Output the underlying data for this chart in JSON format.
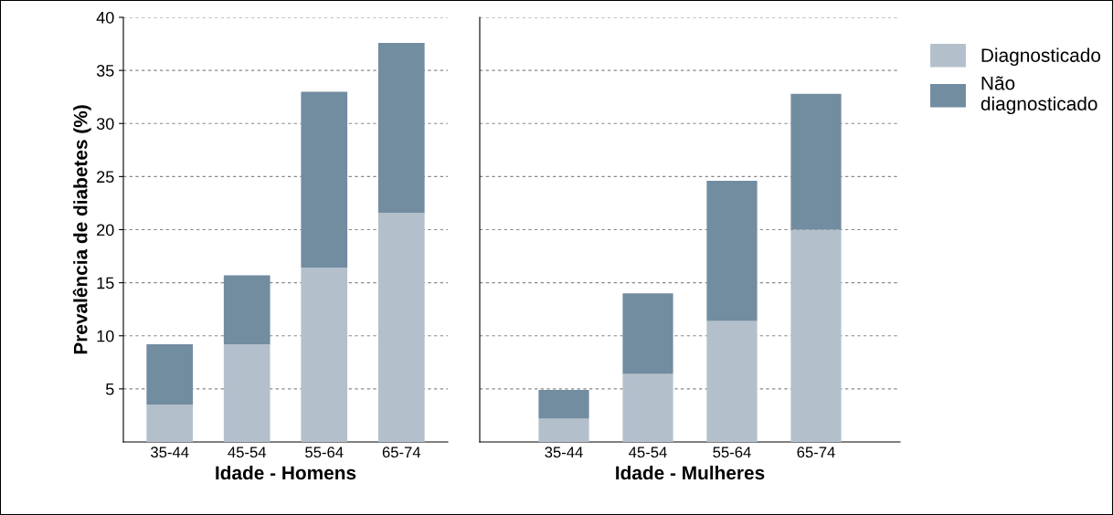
{
  "chart_data": [
    {
      "type": "bar",
      "stacked": true,
      "xlabel": "Idade - Homens",
      "ylabel": "Prevalência de diabetes (%)",
      "categories": [
        "35-44",
        "45-54",
        "55-64",
        "65-74"
      ],
      "series": [
        {
          "name": "Diagnosticado",
          "color": "#b3c0cc",
          "values": [
            3.5,
            9.2,
            16.4,
            21.6
          ]
        },
        {
          "name": "Não\ndiagnosticado",
          "color": "#728ca0",
          "values": [
            5.7,
            6.5,
            16.6,
            16.0
          ]
        }
      ],
      "ylim": [
        0,
        40
      ],
      "yticks": [
        5,
        10,
        15,
        20,
        25,
        30,
        35,
        40
      ],
      "grid": "y",
      "legend": "top right"
    },
    {
      "type": "bar",
      "stacked": true,
      "xlabel": "Idade - Mulheres",
      "categories": [
        "35-44",
        "45-54",
        "55-64",
        "65-74"
      ],
      "series": [
        {
          "color": "#b3c0cc",
          "values": [
            2.2,
            6.4,
            11.4,
            20.0
          ]
        },
        {
          "color": "#728ca0",
          "values": [
            2.7,
            7.6,
            13.2,
            12.8
          ]
        }
      ],
      "ylim": [
        0,
        40
      ],
      "yticks": [
        5,
        10,
        15,
        20,
        25,
        30,
        35,
        40
      ],
      "grid": "y",
      "tick_labels": "x"
    }
  ]
}
